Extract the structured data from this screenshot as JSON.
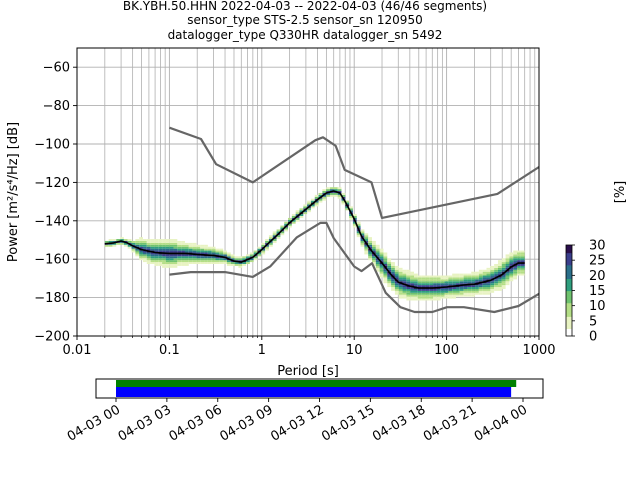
{
  "chart_data": {
    "type": "ppsd",
    "title_lines": [
      "BK.YBH.50.HHN   2022-04-03 -- 2022-04-03  (46/46 segments)",
      "sensor_type STS-2.5 sensor_sn 120950",
      "datalogger_type Q330HR datalogger_sn 5492"
    ],
    "xlabel": "Period [s]",
    "ylabel": "Power [m²/s⁴/Hz] [dB]",
    "x_scale": "log",
    "xlim": [
      0.01,
      1000
    ],
    "ylim": [
      -200,
      -50
    ],
    "x_ticks": [
      {
        "value": 0.01,
        "label": "0.01"
      },
      {
        "value": 0.1,
        "label": "0.1"
      },
      {
        "value": 1,
        "label": "1"
      },
      {
        "value": 10,
        "label": "10"
      },
      {
        "value": 100,
        "label": "100"
      },
      {
        "value": 1000,
        "label": "1000"
      }
    ],
    "y_ticks": [
      {
        "value": -60,
        "label": "−60"
      },
      {
        "value": -80,
        "label": "−80"
      },
      {
        "value": -100,
        "label": "−100"
      },
      {
        "value": -120,
        "label": "−120"
      },
      {
        "value": -140,
        "label": "−140"
      },
      {
        "value": -160,
        "label": "−160"
      },
      {
        "value": -180,
        "label": "−180"
      },
      {
        "value": -200,
        "label": "−200"
      }
    ],
    "grid": true,
    "noise_models": {
      "high": {
        "name": "New High Noise Model",
        "color": "#666666",
        "periods": [
          0.1,
          0.22,
          0.32,
          0.8,
          3.8,
          4.6,
          6.3,
          7.9,
          15.4,
          20,
          354.8,
          1000
        ],
        "db": [
          -91.5,
          -97.4,
          -110.5,
          -120,
          -98,
          -96.5,
          -101,
          -113.5,
          -120,
          -138.5,
          -126,
          -112
        ]
      },
      "low": {
        "name": "New Low Noise Model",
        "color": "#666666",
        "periods": [
          0.1,
          0.17,
          0.4,
          0.8,
          1.24,
          2.4,
          4.3,
          5,
          6,
          10,
          12,
          15.6,
          21.9,
          31.6,
          45,
          70,
          101,
          154,
          328,
          600,
          1000
        ],
        "db": [
          -168,
          -166.7,
          -166.7,
          -169.2,
          -163.7,
          -148.6,
          -141.1,
          -141.1,
          -149,
          -163.8,
          -166.2,
          -162.1,
          -177.5,
          -185,
          -187.5,
          -187.5,
          -185,
          -185,
          -187.5,
          -184.4,
          -178
        ]
      },
      "line_width": 2.2
    },
    "mean_curve": {
      "name": "mean",
      "color": "#000000",
      "periods": [
        0.02,
        0.025,
        0.03,
        0.035,
        0.04,
        0.05,
        0.07,
        0.1,
        0.15,
        0.2,
        0.3,
        0.4,
        0.5,
        0.6,
        0.8,
        1,
        1.5,
        2,
        3,
        4,
        5,
        6,
        7,
        8,
        10,
        12,
        15,
        20,
        25,
        30,
        40,
        50,
        70,
        100,
        150,
        200,
        300,
        400,
        500,
        600,
        700
      ],
      "db": [
        -152,
        -151.5,
        -150.5,
        -151.5,
        -153,
        -155,
        -156.5,
        -157,
        -157,
        -157.5,
        -158,
        -159,
        -161,
        -161.5,
        -159,
        -155,
        -147,
        -141,
        -134,
        -129,
        -125.5,
        -124.5,
        -125.5,
        -130,
        -139,
        -148,
        -155,
        -162,
        -168,
        -172,
        -174,
        -175,
        -175,
        -174.5,
        -173.5,
        -173,
        -171,
        -168,
        -164,
        -162,
        -162
      ]
    },
    "histogram": {
      "description": "probability density of PSD values per period bin, colorized by percent",
      "band_center_db": [
        -152,
        -151.5,
        -150.5,
        -151.5,
        -153,
        -155,
        -156.5,
        -157,
        -157,
        -157.5,
        -158,
        -159,
        -161,
        -161.5,
        -159,
        -155,
        -147,
        -141,
        -134,
        -129,
        -125.5,
        -124.5,
        -125.5,
        -130,
        -139,
        -148,
        -155,
        -162,
        -168,
        -172,
        -174,
        -175,
        -175,
        -174.5,
        -173.5,
        -173,
        -171,
        -168,
        -164,
        -162,
        -162
      ],
      "band_half_spread_db": [
        1,
        1,
        1,
        1,
        2,
        6,
        7,
        8,
        6,
        5,
        4,
        3,
        2,
        2,
        2,
        2,
        2,
        2,
        2,
        2,
        2,
        2,
        2,
        2,
        3,
        4,
        6,
        8,
        8,
        8,
        8,
        7,
        7,
        6,
        6,
        6,
        7,
        8,
        8,
        7,
        7
      ]
    },
    "colorbar": {
      "label": "[%]",
      "min": 0,
      "max": 30,
      "ticks": [
        {
          "value": 0,
          "label": "0"
        },
        {
          "value": 5,
          "label": "5"
        },
        {
          "value": 10,
          "label": "10"
        },
        {
          "value": 15,
          "label": "15"
        },
        {
          "value": 20,
          "label": "20"
        },
        {
          "value": 25,
          "label": "25"
        },
        {
          "value": 30,
          "label": "30"
        }
      ],
      "colors": [
        "#ffffff",
        "#e8f3c2",
        "#b4de86",
        "#6fc26e",
        "#2f9e7e",
        "#2a6f8a",
        "#3b3f8c",
        "#2b0f4c"
      ]
    },
    "coverage": {
      "start_hour": 0,
      "end_hour": 24,
      "data_available": {
        "start_hour": 0,
        "end_hour": 23.6,
        "color": "#008000"
      },
      "segments_processed": {
        "start_hour": 0,
        "end_hour": 23.3,
        "color": "#0000ff"
      },
      "tick_labels": [
        {
          "hour": 0,
          "label": "04-03 00"
        },
        {
          "hour": 3,
          "label": "04-03 03"
        },
        {
          "hour": 6,
          "label": "04-03 06"
        },
        {
          "hour": 9,
          "label": "04-03 09"
        },
        {
          "hour": 12,
          "label": "04-03 12"
        },
        {
          "hour": 15,
          "label": "04-03 15"
        },
        {
          "hour": 18,
          "label": "04-03 18"
        },
        {
          "hour": 21,
          "label": "04-03 21"
        },
        {
          "hour": 24,
          "label": "04-04 00"
        }
      ]
    }
  }
}
